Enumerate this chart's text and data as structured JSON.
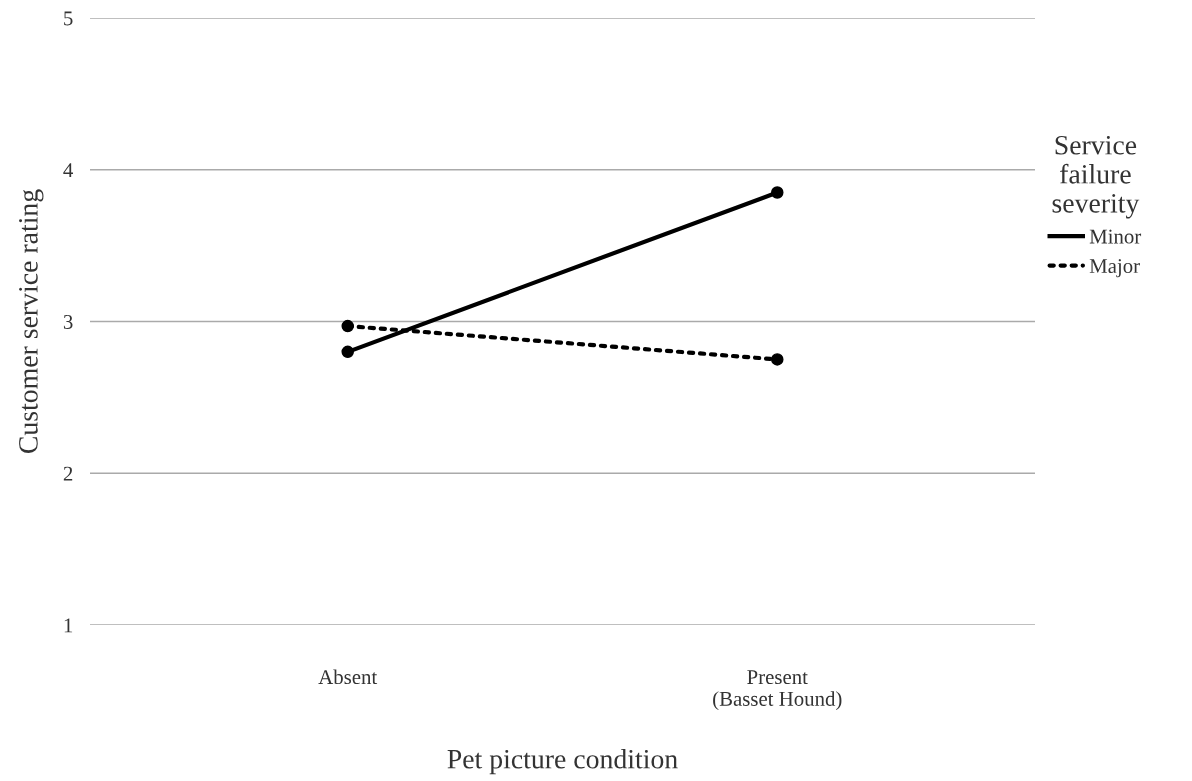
{
  "chart_data": {
    "type": "line",
    "xlabel": "Pet picture condition",
    "ylabel": "Customer service rating",
    "legend_title": "Service\nfailure\nseverity",
    "categories": [
      "Absent",
      "Present\n(Basset Hound)"
    ],
    "series": [
      {
        "name": "Minor",
        "color": "#000000",
        "values": [
          2.8,
          3.85
        ],
        "line_style": "solid"
      },
      {
        "name": "Major",
        "color": "#000000",
        "values": [
          2.97,
          2.75
        ],
        "line_style": "dotted"
      }
    ],
    "ylim": [
      1,
      5
    ],
    "yticks": [
      1,
      2,
      3,
      4,
      5
    ],
    "grid": "y",
    "legend": "right",
    "marker": "circle"
  }
}
